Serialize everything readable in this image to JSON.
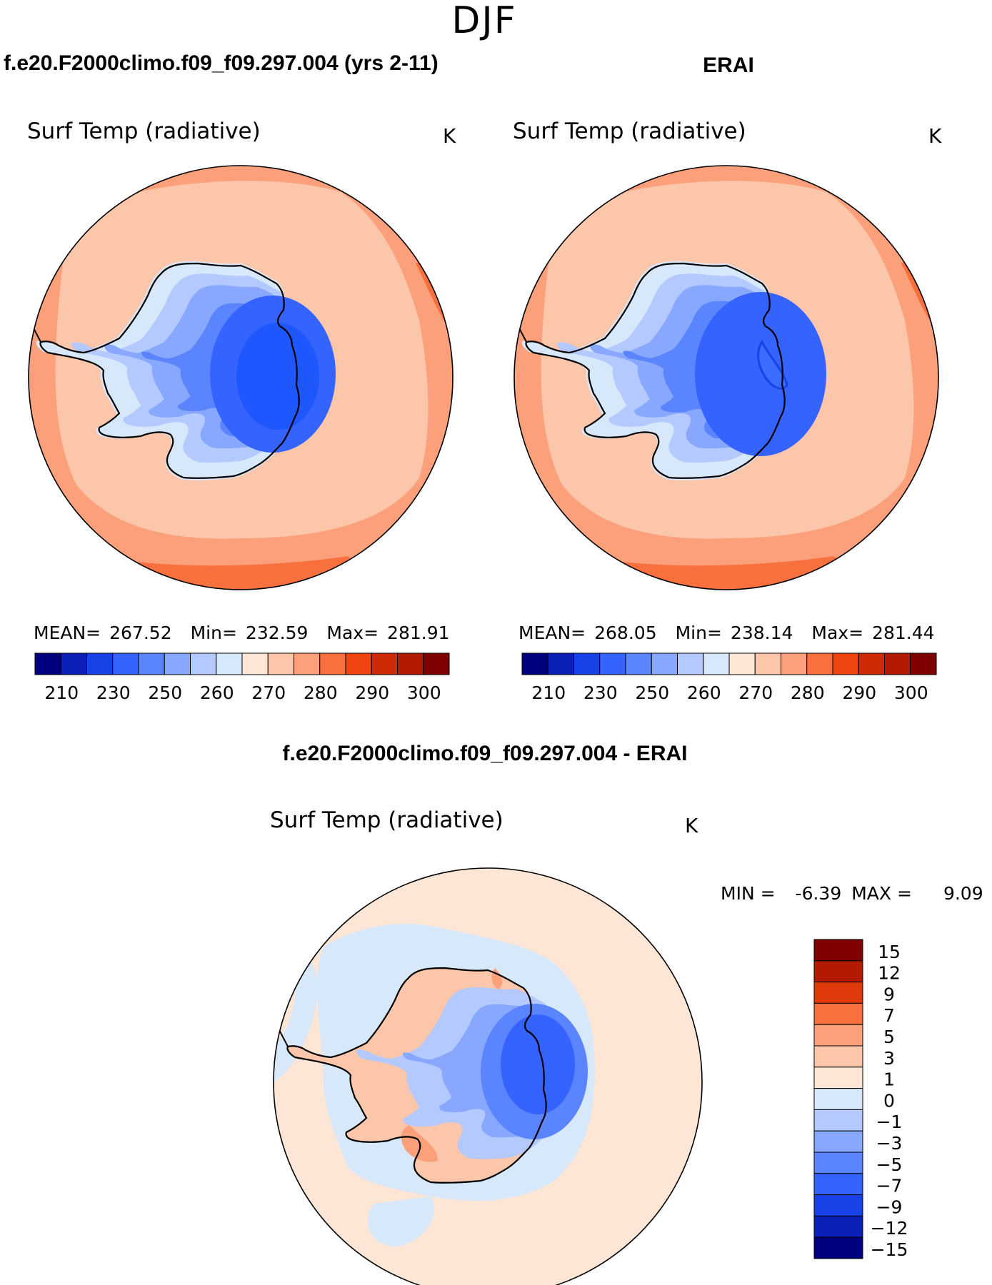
{
  "figure": {
    "season": "DJF"
  },
  "panels": [
    {
      "id": "model",
      "header": "f.e20.F2000climo.f09_f09.297.004 (yrs 2-11)",
      "variable": "Surf Temp (radiative)",
      "units": "K",
      "stats": {
        "mean_label": "MEAN=",
        "mean": "267.52",
        "min_label": "Min=",
        "min": "232.59",
        "max_label": "Max=",
        "max": "281.91"
      },
      "interior_fill": "#1f57ff"
    },
    {
      "id": "obs",
      "header": "ERAI",
      "variable": "Surf Temp (radiative)",
      "units": "K",
      "stats": {
        "mean_label": "MEAN=",
        "mean": "268.05",
        "min_label": "Min=",
        "min": "238.14",
        "max_label": "Max=",
        "max": "281.44"
      },
      "interior_fill": "#3a6cff"
    }
  ],
  "diff_panel": {
    "header": "f.e20.F2000climo.f09_f09.297.004 - ERAI",
    "variable": "Surf Temp (radiative)",
    "units": "K",
    "min_label": "MIN =",
    "min": "-6.39",
    "max_label": "MAX =",
    "max": "9.09"
  },
  "abs_colorbar": {
    "colors": [
      "#00007f",
      "#0a1fb5",
      "#1742e8",
      "#3463ff",
      "#5b84ff",
      "#88a8ff",
      "#b3c9ff",
      "#d8e8fb",
      "#fde6d6",
      "#fcc6aa",
      "#fba07a",
      "#f9703f",
      "#f04510",
      "#cf2a06",
      "#b21a02",
      "#7f0000"
    ],
    "tick_labels": [
      "210",
      "230",
      "250",
      "260",
      "270",
      "280",
      "290",
      "300"
    ]
  },
  "diff_colorbar": {
    "colors_top_to_bottom": [
      "#7f0000",
      "#b21a02",
      "#e03a0b",
      "#f9703f",
      "#fba07a",
      "#fcc6aa",
      "#fde6d6",
      "#d8e8fb",
      "#b3c9ff",
      "#88a8ff",
      "#5b84ff",
      "#3463ff",
      "#1742e8",
      "#0a1fb5",
      "#00007f"
    ],
    "tick_labels_top_to_bottom": [
      "15",
      "12",
      "9",
      "7",
      "5",
      "3",
      "1",
      "0",
      "−1",
      "−3",
      "−5",
      "−7",
      "−9",
      "−12",
      "−15"
    ]
  },
  "map_colors": {
    "ocean_warm": "#fba07a",
    "ocean_mid": "#fcc6aa",
    "ocean_hot": "#f9703f",
    "ice_pale": "#d8e8fb",
    "ice_light": "#b3c9ff",
    "ice_mid": "#88a8ff",
    "ice_blue": "#5b84ff",
    "ice_strong": "#3463ff",
    "coast": "#000000",
    "diff_ocean": "#fde6d6",
    "diff_neg_pale": "#d8e8fb",
    "diff_neg_light": "#b3c9ff",
    "diff_neg_mid": "#88a8ff",
    "diff_neg_strong": "#5b84ff",
    "diff_neg_core": "#3463ff",
    "diff_pos_light": "#fcc6aa",
    "diff_pos_mid": "#fba07a"
  }
}
